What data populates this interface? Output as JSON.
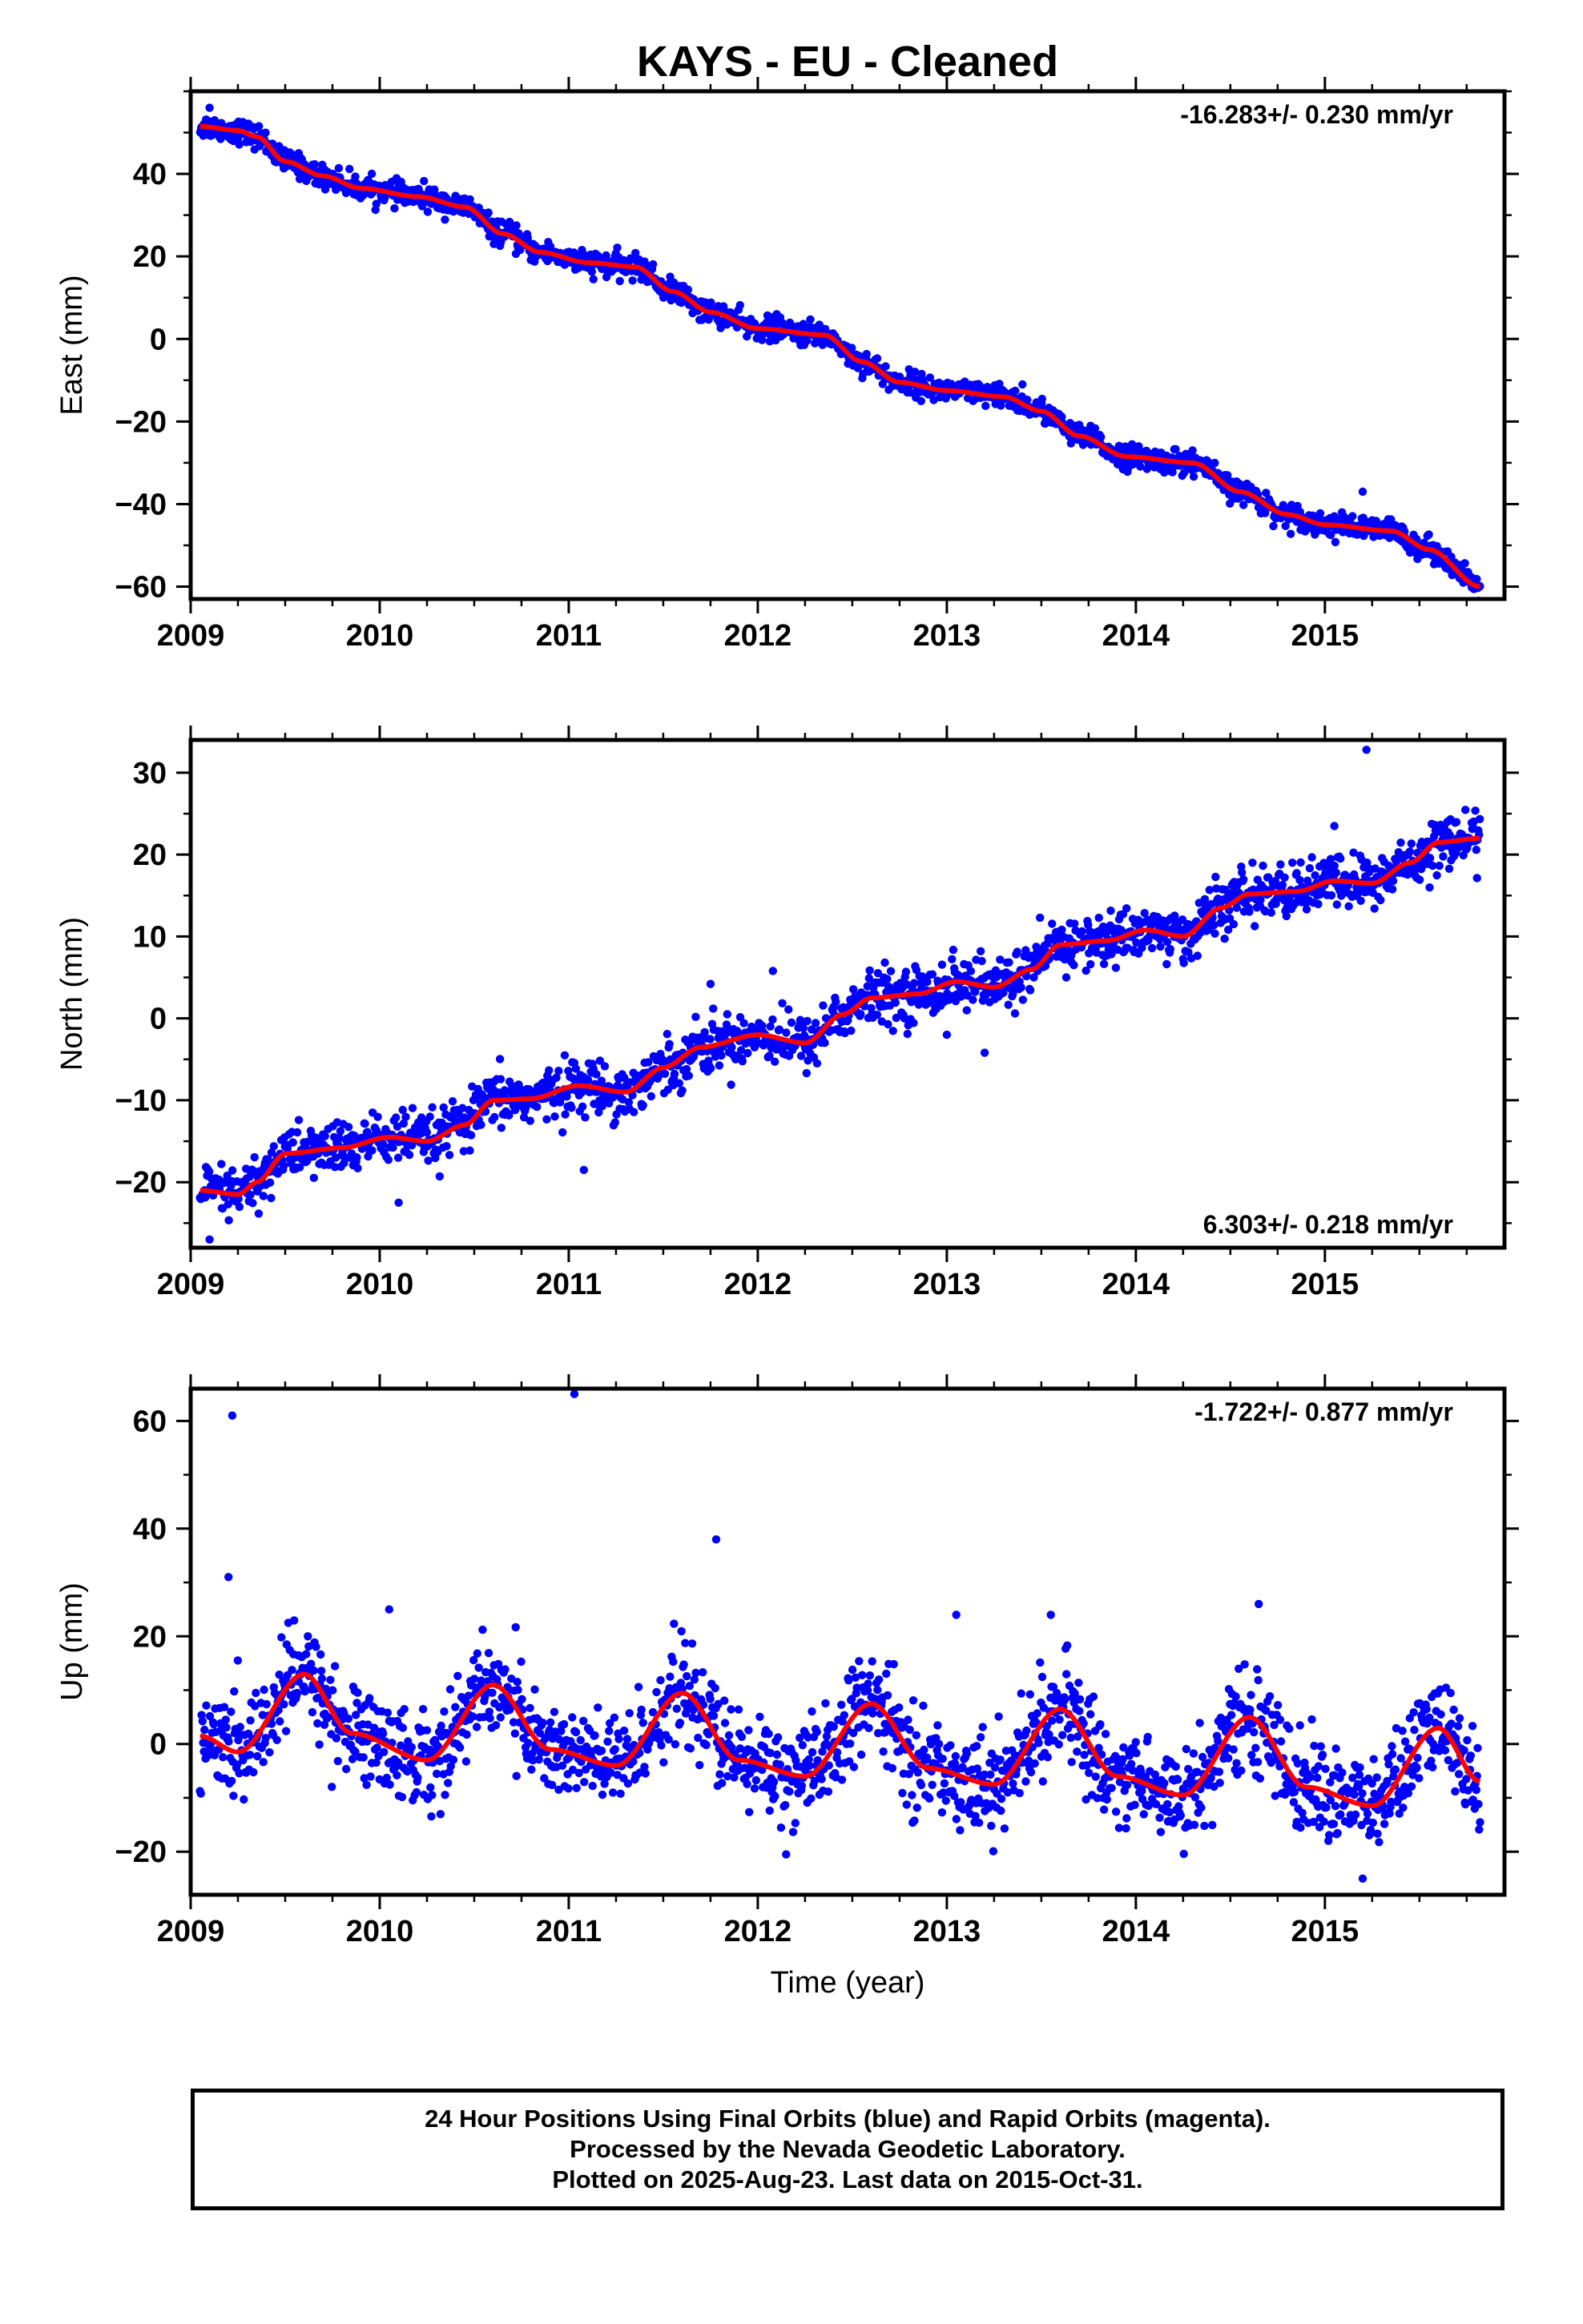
{
  "title": "KAYS  - EU - Cleaned",
  "colors": {
    "points": "#0000ff",
    "model": "#ff0000",
    "axis": "#000000"
  },
  "xaxis": {
    "label": "Time (year)",
    "ticks": [
      "2009",
      "2010",
      "2011",
      "2012",
      "2013",
      "2014",
      "2015"
    ],
    "range": [
      2009.0,
      2015.95
    ]
  },
  "footer": {
    "line1": "24 Hour Positions Using Final Orbits (blue) and Rapid Orbits (magenta).",
    "line2": "Processed by the Nevada Geodetic Laboratory.",
    "line3": "Plotted on 2025-Aug-23. Last data on 2015-Oct-31."
  },
  "chart_data": [
    {
      "type": "scatter",
      "ylabel": "East (mm)",
      "rate_text": "-16.283+/- 0.230 mm/yr",
      "rate_position": "top-right",
      "ylim": [
        -63,
        60
      ],
      "yticks": [
        -60,
        -40,
        -20,
        0,
        20,
        40
      ],
      "x_range": [
        2009.05,
        2015.82
      ],
      "model": [
        [
          2009.05,
          51.5
        ],
        [
          2009.25,
          50.5
        ],
        [
          2009.35,
          49.0
        ],
        [
          2009.5,
          43.0
        ],
        [
          2009.7,
          39.5
        ],
        [
          2009.9,
          36.5
        ],
        [
          2010.2,
          34.5
        ],
        [
          2010.45,
          32.0
        ],
        [
          2010.65,
          25.5
        ],
        [
          2010.85,
          21.0
        ],
        [
          2011.1,
          18.5
        ],
        [
          2011.35,
          17.5
        ],
        [
          2011.55,
          11.5
        ],
        [
          2011.75,
          6.5
        ],
        [
          2012.0,
          2.5
        ],
        [
          2012.35,
          1.0
        ],
        [
          2012.55,
          -5.5
        ],
        [
          2012.75,
          -10.5
        ],
        [
          2013.0,
          -12.5
        ],
        [
          2013.3,
          -14.0
        ],
        [
          2013.5,
          -17.5
        ],
        [
          2013.7,
          -23.5
        ],
        [
          2013.95,
          -28.5
        ],
        [
          2014.3,
          -30.0
        ],
        [
          2014.55,
          -37.0
        ],
        [
          2014.8,
          -42.5
        ],
        [
          2015.0,
          -45.0
        ],
        [
          2015.35,
          -46.5
        ],
        [
          2015.55,
          -51.0
        ],
        [
          2015.82,
          -60.0
        ]
      ],
      "scatter_spread": 1.4,
      "outliers": [
        [
          2009.1,
          56
        ],
        [
          2010.4,
          34
        ],
        [
          2011.2,
          15
        ],
        [
          2012.1,
          6
        ],
        [
          2014.3,
          -27
        ],
        [
          2015.2,
          -37
        ],
        [
          2013.4,
          -11
        ]
      ]
    },
    {
      "type": "scatter",
      "ylabel": "North (mm)",
      "rate_text": "6.303+/- 0.218 mm/yr",
      "rate_position": "bottom-right",
      "ylim": [
        -28,
        34
      ],
      "yticks": [
        -20,
        -10,
        0,
        10,
        20,
        30
      ],
      "x_range": [
        2009.05,
        2015.82
      ],
      "model": [
        [
          2009.05,
          -21.0
        ],
        [
          2009.25,
          -21.5
        ],
        [
          2009.35,
          -20.0
        ],
        [
          2009.5,
          -16.5
        ],
        [
          2009.8,
          -15.8
        ],
        [
          2010.05,
          -14.5
        ],
        [
          2010.25,
          -15.0
        ],
        [
          2010.45,
          -13.0
        ],
        [
          2010.6,
          -10.0
        ],
        [
          2010.8,
          -9.8
        ],
        [
          2011.05,
          -8.2
        ],
        [
          2011.3,
          -9.0
        ],
        [
          2011.5,
          -6.0
        ],
        [
          2011.7,
          -3.5
        ],
        [
          2012.0,
          -2.0
        ],
        [
          2012.25,
          -3.0
        ],
        [
          2012.45,
          0.5
        ],
        [
          2012.6,
          2.5
        ],
        [
          2012.85,
          3.0
        ],
        [
          2013.05,
          4.5
        ],
        [
          2013.25,
          3.8
        ],
        [
          2013.45,
          6.0
        ],
        [
          2013.6,
          9.0
        ],
        [
          2013.85,
          9.5
        ],
        [
          2014.05,
          10.8
        ],
        [
          2014.25,
          10.0
        ],
        [
          2014.45,
          13.5
        ],
        [
          2014.6,
          15.2
        ],
        [
          2014.85,
          15.5
        ],
        [
          2015.05,
          16.8
        ],
        [
          2015.25,
          16.5
        ],
        [
          2015.45,
          19.0
        ],
        [
          2015.6,
          21.5
        ],
        [
          2015.82,
          22.0
        ]
      ],
      "scatter_spread": 1.6,
      "outliers": [
        [
          2009.1,
          -27
        ],
        [
          2010.1,
          -22.5
        ],
        [
          2011.08,
          -18.5
        ],
        [
          2011.75,
          4.2
        ],
        [
          2012.08,
          5.8
        ],
        [
          2013.2,
          -4.2
        ],
        [
          2013.0,
          -2.0
        ],
        [
          2015.05,
          23.5
        ],
        [
          2015.22,
          32.8
        ]
      ]
    },
    {
      "type": "scatter",
      "ylabel": "Up (mm)",
      "rate_text": "-1.722+/- 0.877 mm/yr",
      "rate_position": "top-right",
      "ylim": [
        -28,
        66
      ],
      "yticks": [
        -20,
        0,
        20,
        40,
        60
      ],
      "x_range": [
        2009.05,
        2015.82
      ],
      "model": [
        [
          2009.05,
          1.5
        ],
        [
          2009.25,
          -1.5
        ],
        [
          2009.6,
          13.0
        ],
        [
          2009.85,
          2.0
        ],
        [
          2010.25,
          -3.0
        ],
        [
          2010.6,
          11.0
        ],
        [
          2010.9,
          -1.0
        ],
        [
          2011.25,
          -4.0
        ],
        [
          2011.6,
          9.5
        ],
        [
          2011.9,
          -3.0
        ],
        [
          2012.25,
          -6.0
        ],
        [
          2012.6,
          7.5
        ],
        [
          2012.9,
          -4.5
        ],
        [
          2013.25,
          -7.5
        ],
        [
          2013.6,
          6.5
        ],
        [
          2013.9,
          -6.0
        ],
        [
          2014.25,
          -9.5
        ],
        [
          2014.6,
          5.0
        ],
        [
          2014.9,
          -8.0
        ],
        [
          2015.25,
          -11.5
        ],
        [
          2015.6,
          3.0
        ],
        [
          2015.82,
          -7.0
        ]
      ],
      "scatter_spread": 4.5,
      "outliers": [
        [
          2009.22,
          61
        ],
        [
          2009.2,
          31
        ],
        [
          2011.03,
          65
        ],
        [
          2011.78,
          38
        ],
        [
          2010.05,
          25
        ],
        [
          2013.05,
          24
        ],
        [
          2013.55,
          24
        ],
        [
          2014.65,
          26
        ],
        [
          2012.15,
          -20.5
        ],
        [
          2015.2,
          -25
        ]
      ]
    }
  ]
}
